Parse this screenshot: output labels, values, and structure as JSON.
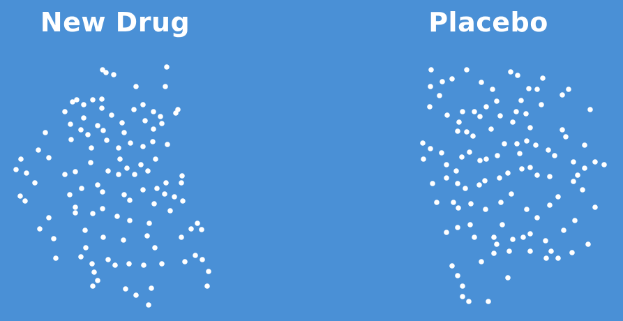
{
  "groups": {
    "left": {
      "label": "New Drug"
    },
    "right": {
      "label": "Placebo"
    }
  },
  "colors": {
    "background": "#4a90d6",
    "dot": "#ffffff",
    "text": "#ffffff"
  }
}
